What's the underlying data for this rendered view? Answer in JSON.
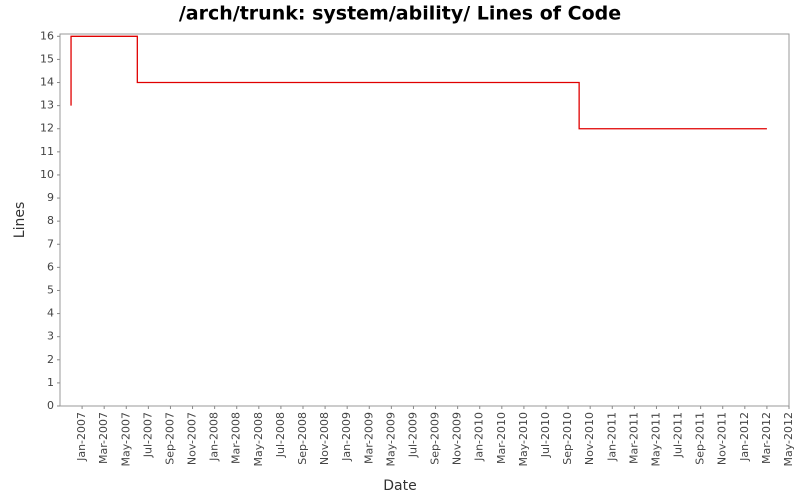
{
  "chart_data": {
    "type": "line",
    "title": "/arch/trunk: system/ability/ Lines of Code",
    "x_label": "Date",
    "y_label": "Lines",
    "x": [
      "2006-12",
      "2006-12",
      "2007-06",
      "2007-06",
      "2010-10",
      "2010-10",
      "2012-03"
    ],
    "series": [
      {
        "name": "Lines",
        "color": "#e00000",
        "values": [
          13,
          16,
          16,
          14,
          14,
          12,
          12
        ]
      }
    ],
    "xlim": [
      "2006-11",
      "2012-05"
    ],
    "xticks": [
      {
        "value": "2007-01",
        "label": "Jan-2007"
      },
      {
        "value": "2007-03",
        "label": "Mar-2007"
      },
      {
        "value": "2007-05",
        "label": "May-2007"
      },
      {
        "value": "2007-07",
        "label": "Jul-2007"
      },
      {
        "value": "2007-09",
        "label": "Sep-2007"
      },
      {
        "value": "2007-11",
        "label": "Nov-2007"
      },
      {
        "value": "2008-01",
        "label": "Jan-2008"
      },
      {
        "value": "2008-03",
        "label": "Mar-2008"
      },
      {
        "value": "2008-05",
        "label": "May-2008"
      },
      {
        "value": "2008-07",
        "label": "Jul-2008"
      },
      {
        "value": "2008-09",
        "label": "Sep-2008"
      },
      {
        "value": "2008-11",
        "label": "Nov-2008"
      },
      {
        "value": "2009-01",
        "label": "Jan-2009"
      },
      {
        "value": "2009-03",
        "label": "Mar-2009"
      },
      {
        "value": "2009-05",
        "label": "May-2009"
      },
      {
        "value": "2009-07",
        "label": "Jul-2009"
      },
      {
        "value": "2009-09",
        "label": "Sep-2009"
      },
      {
        "value": "2009-11",
        "label": "Nov-2009"
      },
      {
        "value": "2010-01",
        "label": "Jan-2010"
      },
      {
        "value": "2010-03",
        "label": "Mar-2010"
      },
      {
        "value": "2010-05",
        "label": "May-2010"
      },
      {
        "value": "2010-07",
        "label": "Jul-2010"
      },
      {
        "value": "2010-09",
        "label": "Sep-2010"
      },
      {
        "value": "2010-11",
        "label": "Nov-2010"
      },
      {
        "value": "2011-01",
        "label": "Jan-2011"
      },
      {
        "value": "2011-03",
        "label": "Mar-2011"
      },
      {
        "value": "2011-05",
        "label": "May-2011"
      },
      {
        "value": "2011-07",
        "label": "Jul-2011"
      },
      {
        "value": "2011-09",
        "label": "Sep-2011"
      },
      {
        "value": "2011-11",
        "label": "Nov-2011"
      },
      {
        "value": "2012-01",
        "label": "Jan-2012"
      },
      {
        "value": "2012-03",
        "label": "Mar-2012"
      },
      {
        "value": "2012-05",
        "label": "May-2012"
      }
    ],
    "ylim": [
      0,
      16.1
    ],
    "yticks": [
      0,
      1,
      2,
      3,
      4,
      5,
      6,
      7,
      8,
      9,
      10,
      11,
      12,
      13,
      14,
      15,
      16
    ],
    "grid": false
  }
}
